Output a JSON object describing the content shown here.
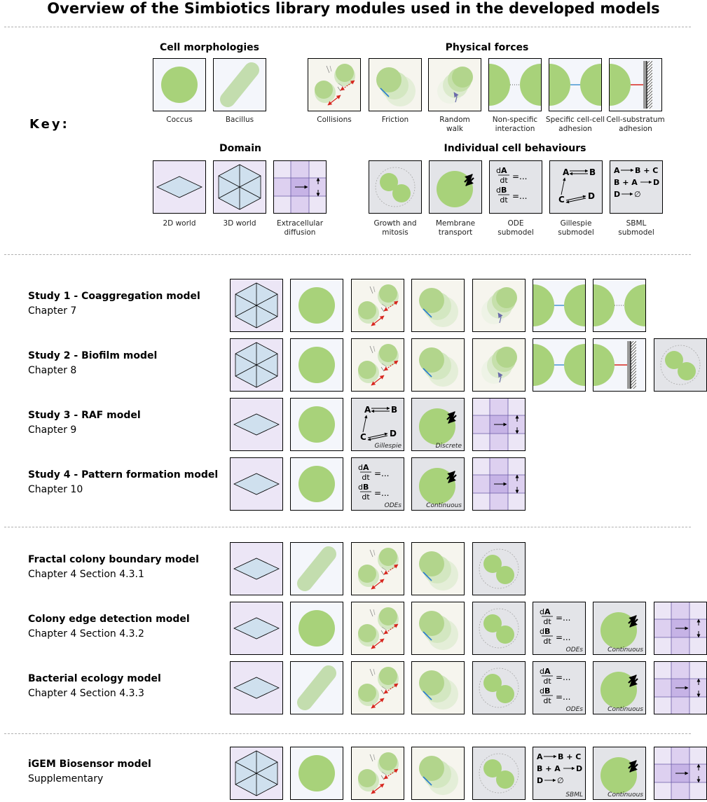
{
  "title": "Overview of the Simbiotics library modules used in the developed models",
  "key_label": "Key:",
  "sections": {
    "cell_morphologies": "Cell morphologies",
    "physical_forces": "Physical forces",
    "domain": "Domain",
    "individual_cell_behaviours": "Individual cell behaviours"
  },
  "key_tiles": {
    "coccus": "Coccus",
    "bacillus": "Bacillus",
    "collisions": "Collisions",
    "friction": "Friction",
    "random_walk": [
      "Random",
      "walk"
    ],
    "non_specific": [
      "Non-specific",
      "interaction"
    ],
    "specific_adhesion": [
      "Specific cell-cell",
      "adhesion"
    ],
    "substratum_adhesion": [
      "Cell-substratum",
      "adhesion"
    ],
    "world_2d": "2D world",
    "world_3d": "3D world",
    "diffusion": [
      "Extracellular",
      "diffusion"
    ],
    "growth": [
      "Growth and",
      "mitosis"
    ],
    "membrane": [
      "Membrane",
      "transport"
    ],
    "ode": [
      "ODE",
      "submodel"
    ],
    "gillespie": [
      "Gillespie",
      "submodel"
    ],
    "sbml": [
      "SBML",
      "submodel"
    ]
  },
  "tile_subtitles": {
    "gillespie": "Gillespie",
    "discrete": "Discrete",
    "odes": "ODEs",
    "continuous": "Continuous",
    "sbml": "SBML"
  },
  "formula_text": {
    "ode_d": "d",
    "ode_A": "A",
    "ode_B": "B",
    "ode_dt": "dt",
    "ode_eq": "=...",
    "g_A": "A",
    "g_B": "B",
    "g_C": "C",
    "g_D": "D",
    "sbml_A": "A",
    "sbml_B_plus_C": "B + C",
    "sbml_B_plus_A": "B + A",
    "sbml_D": "D",
    "sbml_D2": "D",
    "sbml_empty": "∅"
  },
  "models": [
    {
      "title": "Study 1 - Coaggregation model",
      "subtitle": "Chapter 7",
      "tiles": [
        "world_3d",
        "coccus",
        "collisions",
        "friction",
        "random_walk",
        "specific_adhesion",
        "non_specific"
      ]
    },
    {
      "title": "Study 2 - Biofilm model",
      "subtitle": "Chapter 8",
      "tiles": [
        "world_3d",
        "coccus",
        "collisions",
        "friction",
        "random_walk",
        "specific_adhesion",
        "substratum_adhesion",
        "growth"
      ]
    },
    {
      "title": "Study 3 - RAF model",
      "subtitle": "Chapter 9",
      "tiles": [
        "world_2d",
        "coccus",
        "gillespie",
        "membrane_discrete",
        "diffusion"
      ]
    },
    {
      "title": "Study 4 - Pattern formation model",
      "subtitle": "Chapter 10",
      "tiles": [
        "world_2d",
        "coccus",
        "ode",
        "membrane_continuous",
        "diffusion"
      ]
    },
    {
      "title": "Fractal colony boundary model",
      "subtitle": "Chapter 4 Section 4.3.1",
      "tiles": [
        "world_2d",
        "bacillus",
        "collisions",
        "friction",
        "growth"
      ]
    },
    {
      "title": "Colony edge detection model",
      "subtitle": "Chapter 4 Section 4.3.2",
      "tiles": [
        "world_2d",
        "coccus",
        "collisions",
        "friction",
        "growth",
        "ode",
        "membrane_continuous",
        "diffusion"
      ]
    },
    {
      "title": "Bacterial ecology model",
      "subtitle": "Chapter 4 Section 4.3.3",
      "tiles": [
        "world_2d",
        "bacillus",
        "collisions",
        "friction",
        "growth",
        "ode",
        "membrane_continuous",
        "diffusion"
      ]
    },
    {
      "title": "iGEM Biosensor model",
      "subtitle": "Supplementary",
      "tiles": [
        "world_3d",
        "coccus",
        "collisions",
        "friction",
        "growth",
        "sbml",
        "membrane_continuous",
        "diffusion"
      ]
    }
  ],
  "colors": {
    "cell_green": "#a8d27a",
    "tile_light": "#f4f6fb",
    "tile_purple": "#ece6f6",
    "tile_beige": "#f6f5ee",
    "tile_grey": "#e3e4e8",
    "domain_blue": "#cfe0ee",
    "red_arrow": "#d7261e"
  }
}
